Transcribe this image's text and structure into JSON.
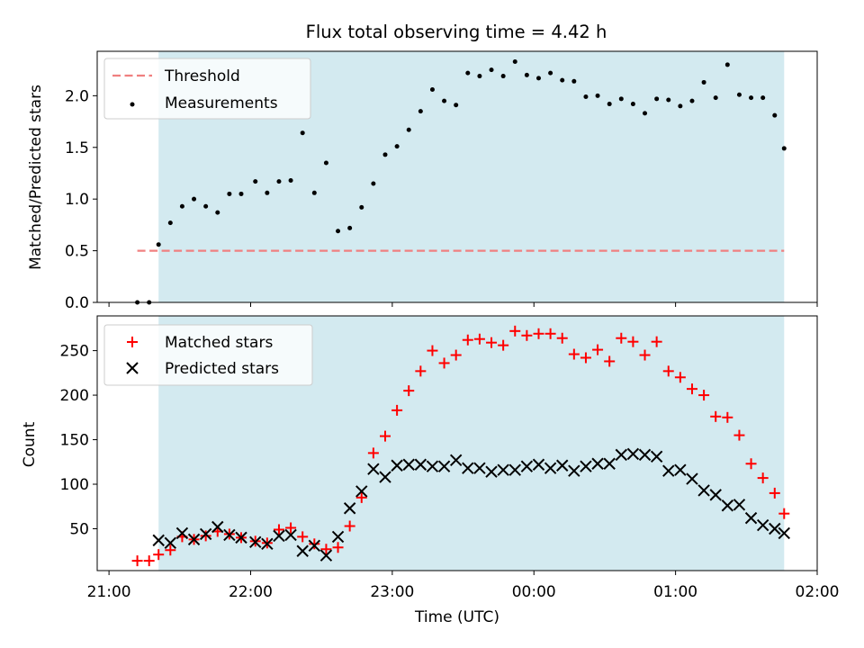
{
  "chart_data": [
    {
      "type": "scatter",
      "title": "Flux total observing time = 4.42 h",
      "xlabel": "",
      "ylabel": "Matched/Predicted stars",
      "ylim": [
        0,
        2.43
      ],
      "yticks": [
        0.0,
        0.5,
        1.0,
        1.5,
        2.0
      ],
      "ytick_labels": [
        "0.0",
        "0.5",
        "1.0",
        "1.5",
        "2.0"
      ],
      "legend_position": "top-left",
      "observing_window": {
        "start": "21:21",
        "end": "01:46",
        "color": "#d3eaf0"
      },
      "threshold": {
        "name": "Threshold",
        "value": 0.5,
        "start": "21:12",
        "end": "01:46",
        "color": "#f08080",
        "style": "dashed"
      },
      "series": [
        {
          "name": "Measurements",
          "color": "#000000",
          "marker": "dot",
          "x": [
            "21:12",
            "21:17",
            "21:21",
            "21:26",
            "21:31",
            "21:36",
            "21:41",
            "21:46",
            "21:51",
            "21:56",
            "22:02",
            "22:07",
            "22:12",
            "22:17",
            "22:22",
            "22:27",
            "22:32",
            "22:37",
            "22:42",
            "22:47",
            "22:52",
            "22:57",
            "23:02",
            "23:07",
            "23:12",
            "23:17",
            "23:22",
            "23:27",
            "23:32",
            "23:37",
            "23:42",
            "23:47",
            "23:52",
            "23:57",
            "00:02",
            "00:07",
            "00:12",
            "00:17",
            "00:22",
            "00:27",
            "00:32",
            "00:37",
            "00:42",
            "00:47",
            "00:52",
            "00:57",
            "01:02",
            "01:07",
            "01:12",
            "01:17",
            "01:22",
            "01:27",
            "01:32",
            "01:37",
            "01:42",
            "01:46"
          ],
          "y": [
            0.0,
            0.0,
            0.56,
            0.77,
            0.93,
            1.0,
            0.93,
            0.87,
            1.05,
            1.05,
            1.17,
            1.06,
            1.17,
            1.18,
            1.64,
            1.06,
            1.35,
            0.69,
            0.72,
            0.92,
            1.15,
            1.43,
            1.51,
            1.67,
            1.85,
            2.06,
            1.95,
            1.91,
            2.22,
            2.19,
            2.25,
            2.19,
            2.33,
            2.2,
            2.17,
            2.22,
            2.15,
            2.14,
            1.99,
            2.0,
            1.92,
            1.97,
            1.92,
            1.83,
            1.97,
            1.96,
            1.9,
            1.95,
            2.13,
            1.98,
            2.3,
            2.01,
            1.98,
            1.98,
            1.81,
            1.49
          ]
        }
      ]
    },
    {
      "type": "scatter",
      "title": "",
      "xlabel": "Time (UTC)",
      "ylabel": "Count",
      "ylim": [
        3,
        289
      ],
      "yticks": [
        50,
        100,
        150,
        200,
        250
      ],
      "ytick_labels": [
        "50",
        "100",
        "150",
        "200",
        "250"
      ],
      "xticks": [
        "21:00",
        "22:00",
        "23:00",
        "00:00",
        "01:00",
        "02:00"
      ],
      "legend_position": "top-left",
      "observing_window": {
        "start": "21:21",
        "end": "01:46",
        "color": "#d3eaf0"
      },
      "series": [
        {
          "name": "Matched stars",
          "color": "#ff0000",
          "marker": "plus",
          "x": [
            "21:12",
            "21:17",
            "21:21",
            "21:26",
            "21:31",
            "21:36",
            "21:41",
            "21:46",
            "21:51",
            "21:56",
            "22:02",
            "22:07",
            "22:12",
            "22:17",
            "22:22",
            "22:27",
            "22:32",
            "22:37",
            "22:42",
            "22:47",
            "22:52",
            "22:57",
            "23:02",
            "23:07",
            "23:12",
            "23:17",
            "23:22",
            "23:27",
            "23:32",
            "23:37",
            "23:42",
            "23:47",
            "23:52",
            "23:57",
            "00:02",
            "00:07",
            "00:12",
            "00:17",
            "00:22",
            "00:27",
            "00:32",
            "00:37",
            "00:42",
            "00:47",
            "00:52",
            "00:57",
            "01:02",
            "01:07",
            "01:12",
            "01:17",
            "01:22",
            "01:27",
            "01:32",
            "01:37",
            "01:42",
            "01:46"
          ],
          "y": [
            14,
            14,
            21,
            26,
            41,
            38,
            42,
            47,
            44,
            40,
            36,
            34,
            49,
            51,
            41,
            33,
            27,
            29,
            53,
            85,
            135,
            154,
            183,
            205,
            227,
            250,
            236,
            245,
            262,
            263,
            259,
            256,
            272,
            267,
            269,
            269,
            264,
            246,
            242,
            251,
            238,
            264,
            260,
            245,
            260,
            227,
            220,
            207,
            200,
            176,
            175,
            155,
            123,
            107,
            90,
            67
          ]
        },
        {
          "name": "Predicted stars",
          "color": "#000000",
          "marker": "x",
          "x": [
            "21:21",
            "21:26",
            "21:31",
            "21:36",
            "21:41",
            "21:46",
            "21:51",
            "21:56",
            "22:02",
            "22:07",
            "22:12",
            "22:17",
            "22:22",
            "22:27",
            "22:32",
            "22:37",
            "22:42",
            "22:47",
            "22:52",
            "22:57",
            "23:02",
            "23:07",
            "23:12",
            "23:17",
            "23:22",
            "23:27",
            "23:32",
            "23:37",
            "23:42",
            "23:47",
            "23:52",
            "23:57",
            "00:02",
            "00:07",
            "00:12",
            "00:17",
            "00:22",
            "00:27",
            "00:32",
            "00:37",
            "00:42",
            "00:47",
            "00:52",
            "00:57",
            "01:02",
            "01:07",
            "01:12",
            "01:17",
            "01:22",
            "01:27",
            "01:32",
            "01:37",
            "01:42",
            "01:46"
          ],
          "y": [
            37,
            34,
            45,
            38,
            44,
            52,
            43,
            40,
            35,
            33,
            42,
            43,
            25,
            31,
            20,
            41,
            73,
            92,
            117,
            108,
            121,
            122,
            122,
            120,
            120,
            127,
            118,
            118,
            114,
            116,
            116,
            120,
            122,
            118,
            121,
            115,
            120,
            123,
            123,
            133,
            134,
            133,
            131,
            115,
            116,
            106,
            93,
            88,
            76,
            77,
            62,
            54,
            50,
            45
          ]
        }
      ]
    }
  ]
}
